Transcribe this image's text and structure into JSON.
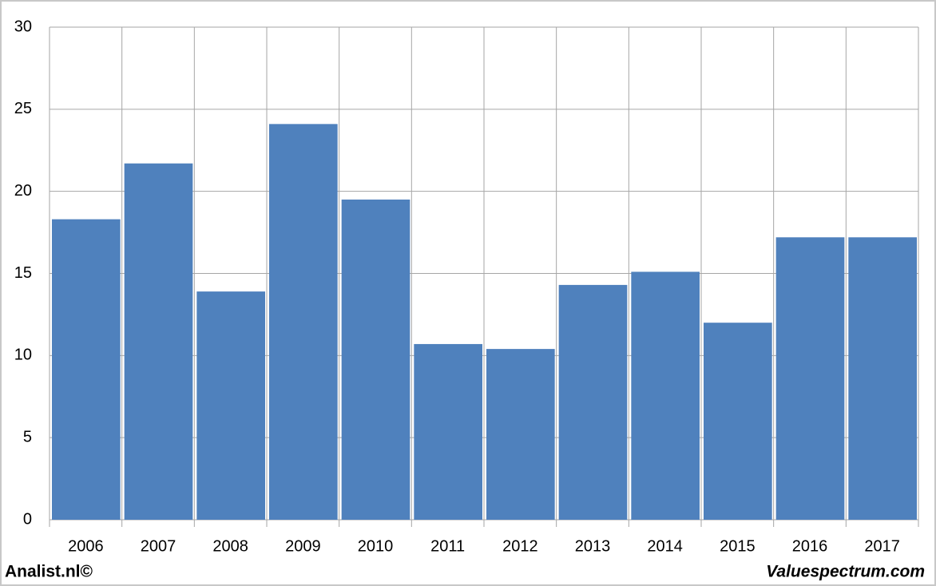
{
  "chart_data": {
    "type": "bar",
    "categories": [
      "2006",
      "2007",
      "2008",
      "2009",
      "2010",
      "2011",
      "2012",
      "2013",
      "2014",
      "2015",
      "2016",
      "2017"
    ],
    "values": [
      18.3,
      21.7,
      13.9,
      24.1,
      19.5,
      10.7,
      10.4,
      14.3,
      15.1,
      12.0,
      17.2,
      17.2
    ],
    "color": "#4f81bd",
    "ylim": [
      0,
      30
    ],
    "yticks": [
      0,
      5,
      10,
      15,
      20,
      25,
      30
    ],
    "grid": true
  },
  "footer": {
    "left": "Analist.nl©",
    "right": "Valuespectrum.com"
  }
}
